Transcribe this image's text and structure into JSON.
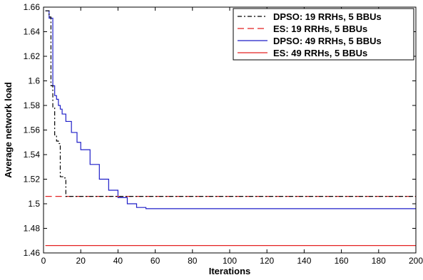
{
  "chart_data": {
    "type": "line",
    "title": "",
    "xlabel": "Iterations",
    "ylabel": "Average network load",
    "xlim": [
      0,
      200
    ],
    "ylim": [
      1.46,
      1.66
    ],
    "xticks": [
      0,
      20,
      40,
      60,
      80,
      100,
      120,
      140,
      160,
      180,
      200
    ],
    "yticks": [
      1.46,
      1.48,
      1.5,
      1.52,
      1.54,
      1.56,
      1.58,
      1.6,
      1.62,
      1.64,
      1.66
    ],
    "xtick_labels": [
      "0",
      "20",
      "40",
      "60",
      "80",
      "100",
      "120",
      "140",
      "160",
      "180",
      "200"
    ],
    "ytick_labels": [
      "1.46",
      "1.48",
      "1.5",
      "1.52",
      "1.54",
      "1.56",
      "1.58",
      "1.6",
      "1.62",
      "1.64",
      "1.66"
    ],
    "grid": false,
    "legend_position": "top-right",
    "series": [
      {
        "name": "DPSO: 19 RRHs, 5 BBUs",
        "color": "#000000",
        "style": "dashdot",
        "step": true,
        "x": [
          1,
          3,
          4,
          5,
          6,
          7,
          8,
          9,
          10,
          11,
          12,
          200
        ],
        "y": [
          1.657,
          1.652,
          1.596,
          1.578,
          1.556,
          1.551,
          1.549,
          1.522,
          1.522,
          1.521,
          1.506,
          1.506
        ]
      },
      {
        "name": "ES: 19 RRHs, 5 BBUs",
        "color": "#e32222",
        "style": "dashed",
        "step": false,
        "x": [
          1,
          200
        ],
        "y": [
          1.506,
          1.506
        ]
      },
      {
        "name": "DPSO: 49 RRHs, 5 BBUs",
        "color": "#1f1fc8",
        "style": "solid",
        "step": true,
        "x": [
          1,
          2,
          3,
          4,
          5,
          6,
          7,
          8,
          9,
          10,
          12,
          15,
          18,
          20,
          25,
          30,
          35,
          40,
          45,
          50,
          55,
          60,
          80,
          100,
          200
        ],
        "y": [
          1.657,
          1.657,
          1.651,
          1.651,
          1.596,
          1.588,
          1.585,
          1.58,
          1.577,
          1.573,
          1.567,
          1.558,
          1.55,
          1.544,
          1.532,
          1.52,
          1.511,
          1.505,
          1.5,
          1.497,
          1.496,
          1.496,
          1.496,
          1.496,
          1.496
        ]
      },
      {
        "name": "ES: 49 RRHs, 5 BBUs",
        "color": "#e32222",
        "style": "solid",
        "step": false,
        "x": [
          1,
          200
        ],
        "y": [
          1.466,
          1.466
        ]
      }
    ]
  }
}
